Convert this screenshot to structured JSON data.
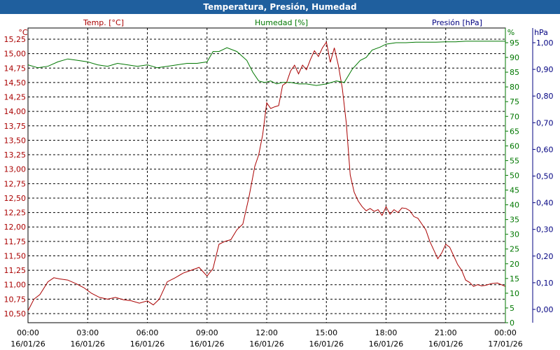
{
  "window": {
    "title": "Temperatura, Presión, Humedad"
  },
  "colors": {
    "temp": "#aa0000",
    "hum": "#007700",
    "pres": "#000080",
    "titlebar": "#1f5f9e",
    "grid": "#000000"
  },
  "chart_data": {
    "type": "line",
    "title": "Temperatura, Presión, Humedad",
    "grid": true,
    "x_ticks": [
      {
        "time": "00:00",
        "date": "16/01/26"
      },
      {
        "time": "03:00",
        "date": "16/01/26"
      },
      {
        "time": "06:00",
        "date": "16/01/26"
      },
      {
        "time": "09:00",
        "date": "16/01/26"
      },
      {
        "time": "12:00",
        "date": "16/01/26"
      },
      {
        "time": "15:00",
        "date": "16/01/26"
      },
      {
        "time": "18:00",
        "date": "16/01/26"
      },
      {
        "time": "21:00",
        "date": "16/01/26"
      },
      {
        "time": "00:00",
        "date": "17/01/26"
      }
    ],
    "axes": {
      "temp": {
        "label": "Temp. [°C]",
        "unit": "°C",
        "range": [
          10.5,
          15.25
        ],
        "ticks": [
          "10,50",
          "10,75",
          "11,00",
          "11,25",
          "11,50",
          "11,75",
          "12,00",
          "12,25",
          "12,50",
          "12,75",
          "13,00",
          "13,25",
          "13,50",
          "13,75",
          "14,00",
          "14,25",
          "14,50",
          "14,75",
          "15,00",
          "15,25"
        ]
      },
      "hum": {
        "label": "Humedad [%]",
        "unit": "%",
        "range": [
          0,
          95
        ],
        "ticks": [
          "0",
          "5",
          "10",
          "15",
          "20",
          "25",
          "30",
          "35",
          "40",
          "45",
          "50",
          "55",
          "60",
          "65",
          "70",
          "75",
          "80",
          "85",
          "90",
          "95"
        ]
      },
      "pres": {
        "label": "Presión [hPa]",
        "unit": "hPa",
        "range": [
          0,
          1
        ],
        "ticks": [
          "0,00",
          "0,10",
          "0,20",
          "0,30",
          "0,40",
          "0,50",
          "0,60",
          "0,70",
          "0,80",
          "0,90",
          "1,00"
        ]
      }
    },
    "series": [
      {
        "name": "Temp. [°C]",
        "axis": "temp",
        "x": [
          0,
          0.3,
          0.6,
          1.0,
          1.3,
          1.6,
          2.0,
          2.4,
          2.8,
          3.2,
          3.6,
          4.0,
          4.4,
          4.8,
          5.2,
          5.6,
          6.0,
          6.3,
          6.6,
          7.0,
          7.4,
          7.8,
          8.2,
          8.6,
          9.0,
          9.3,
          9.6,
          9.9,
          10.2,
          10.5,
          10.8,
          11.1,
          11.4,
          11.6,
          11.8,
          12.0,
          12.2,
          12.4,
          12.6,
          12.8,
          13.0,
          13.2,
          13.4,
          13.6,
          13.8,
          14.0,
          14.2,
          14.4,
          14.6,
          14.8,
          15.0,
          15.2,
          15.4,
          15.6,
          15.8,
          16.0,
          16.2,
          16.4,
          16.6,
          16.8,
          17.0,
          17.2,
          17.4,
          17.6,
          17.8,
          18.0,
          18.2,
          18.4,
          18.6,
          18.8,
          19.0,
          19.2,
          19.4,
          19.6,
          19.8,
          20.0,
          20.2,
          20.4,
          20.6,
          20.8,
          21.0,
          21.2,
          21.4,
          21.6,
          21.8,
          22.0,
          22.2,
          22.4,
          22.6,
          22.8,
          23.0,
          23.3,
          23.6,
          24.0
        ],
        "y": [
          10.55,
          10.75,
          10.83,
          11.05,
          11.12,
          11.1,
          11.08,
          11.02,
          10.95,
          10.85,
          10.78,
          10.75,
          10.78,
          10.74,
          10.72,
          10.68,
          10.72,
          10.65,
          10.75,
          11.05,
          11.12,
          11.2,
          11.25,
          11.3,
          11.15,
          11.28,
          11.7,
          11.75,
          11.78,
          11.95,
          12.05,
          12.5,
          13.05,
          13.25,
          13.6,
          14.15,
          14.05,
          14.08,
          14.1,
          14.45,
          14.5,
          14.7,
          14.8,
          14.65,
          14.8,
          14.72,
          14.9,
          15.05,
          14.95,
          15.1,
          15.2,
          14.85,
          15.1,
          14.8,
          14.4,
          13.8,
          12.9,
          12.6,
          12.45,
          12.35,
          12.28,
          12.32,
          12.27,
          12.3,
          12.2,
          12.35,
          12.22,
          12.3,
          12.25,
          12.33,
          12.32,
          12.28,
          12.18,
          12.15,
          12.05,
          11.95,
          11.75,
          11.6,
          11.45,
          11.55,
          11.7,
          11.65,
          11.5,
          11.35,
          11.25,
          11.08,
          11.04,
          10.97,
          11.0,
          10.98,
          10.99,
          11.02,
          11.03,
          10.97
        ]
      },
      {
        "name": "Humedad [%]",
        "axis": "hum",
        "x": [
          0,
          0.5,
          1.0,
          1.5,
          2.0,
          2.5,
          3.0,
          3.5,
          4.0,
          4.5,
          5.0,
          5.5,
          6.0,
          6.5,
          7.0,
          7.5,
          8.0,
          8.5,
          9.0,
          9.3,
          9.6,
          10.0,
          10.5,
          11.0,
          11.3,
          11.6,
          11.9,
          12.2,
          12.5,
          12.8,
          13.2,
          13.6,
          14.0,
          14.5,
          15.0,
          15.5,
          15.9,
          16.3,
          16.7,
          17.0,
          17.3,
          17.7,
          18.0,
          18.5,
          19.0,
          19.5,
          20.0,
          20.5,
          21.0,
          21.5,
          22.0,
          22.5,
          23.0,
          23.5,
          24.0
        ],
        "y": [
          87.5,
          86.5,
          87,
          88.5,
          89.5,
          89,
          88.5,
          87.5,
          87,
          88,
          87.5,
          87,
          87.5,
          86.5,
          87,
          87.5,
          88,
          88,
          88.5,
          92,
          92,
          93.3,
          92,
          89,
          85,
          82,
          81.5,
          82,
          81,
          81.5,
          81.5,
          81,
          81,
          80.5,
          81,
          82,
          81.5,
          86,
          89,
          90,
          92.5,
          93.5,
          94.5,
          95,
          95,
          95.2,
          95.2,
          95.2,
          95.3,
          95.3,
          95.5,
          95.5,
          95.5,
          95.5,
          95.5
        ]
      },
      {
        "name": "Presión [hPa]",
        "axis": "pres",
        "x": [],
        "y": []
      }
    ]
  }
}
